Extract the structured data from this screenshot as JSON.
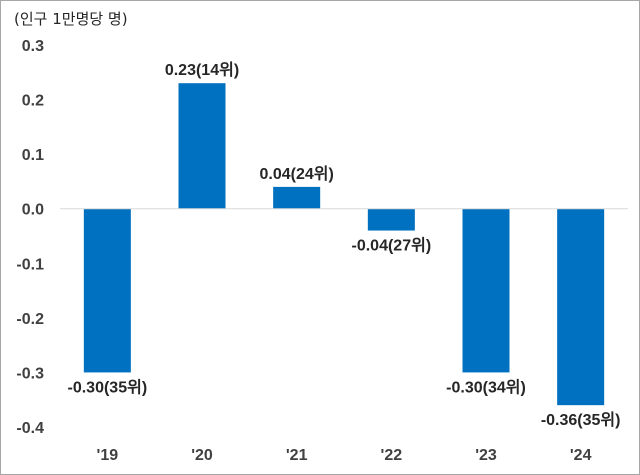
{
  "chart_data": {
    "type": "bar",
    "unit_label": "(인구 1만명당 명)",
    "categories": [
      "'19",
      "'20",
      "'21",
      "'22",
      "'23",
      "'24"
    ],
    "values": [
      -0.3,
      0.23,
      0.04,
      -0.04,
      -0.3,
      -0.36
    ],
    "data_labels": [
      "-0.30(35위)",
      "0.23(14위)",
      "0.04(24위)",
      "-0.04(27위)",
      "-0.30(34위)",
      "-0.36(35위)"
    ],
    "yticks": [
      "0.3",
      "0.2",
      "0.1",
      "0.0",
      "-0.1",
      "-0.2",
      "-0.3",
      "-0.4"
    ],
    "ylim": [
      -0.4,
      0.3
    ],
    "grid": false,
    "legend": "none",
    "bar_color": "#0070c0"
  }
}
